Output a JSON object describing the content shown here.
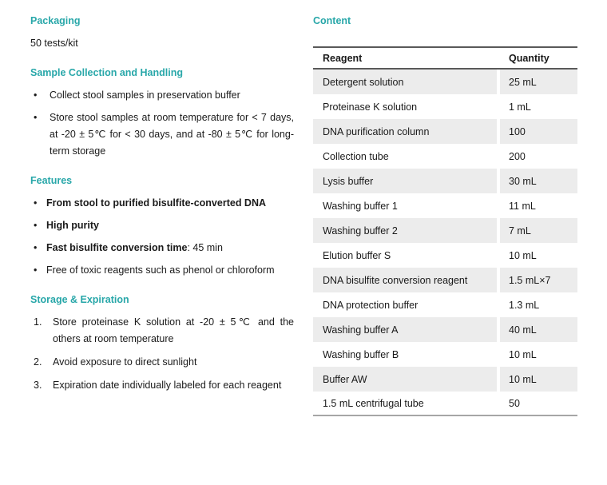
{
  "colors": {
    "accent_teal": "#28a7a9",
    "row_shade": "#ececec",
    "header_border": "#595959",
    "table_bottom_border": "#a6a6a6",
    "text": "#1a1a1a"
  },
  "left": {
    "packaging": {
      "heading": "Packaging",
      "body": "50 tests/kit"
    },
    "sample_handling": {
      "heading": "Sample Collection and Handling",
      "bullets": [
        "Collect stool samples in preservation buffer",
        "Store stool samples at room temperature for < 7 days, at -20 ± 5℃ for < 30 days, and at -80 ± 5℃ for long-term storage"
      ]
    },
    "features": {
      "heading": "Features",
      "bullets": [
        {
          "bold": "From stool to purified bisulfite-converted DNA",
          "text": ""
        },
        {
          "bold": "High purity",
          "text": ""
        },
        {
          "bold": "Fast bisulfite conversion time",
          "text": ": 45 min"
        },
        {
          "bold": "",
          "text": "Free of toxic reagents such as phenol or chloroform"
        }
      ]
    },
    "storage": {
      "heading": "Storage & Expiration",
      "items": [
        {
          "num": "1.",
          "text": "Store proteinase K solution at -20 ± 5℃ and the others at room temperature"
        },
        {
          "num": "2.",
          "text": "Avoid exposure to direct sunlight"
        },
        {
          "num": "3.",
          "text": "Expiration date individually labeled for each reagent"
        }
      ]
    }
  },
  "right": {
    "heading": "Content",
    "table": {
      "headers": [
        "Reagent",
        "Quantity"
      ],
      "rows": [
        [
          "Detergent solution",
          "25 mL"
        ],
        [
          "Proteinase K solution",
          "1 mL"
        ],
        [
          "DNA purification column",
          "100"
        ],
        [
          "Collection tube",
          "200"
        ],
        [
          "Lysis buffer",
          "30 mL"
        ],
        [
          "Washing buffer 1",
          "11 mL"
        ],
        [
          "Washing buffer 2",
          "7 mL"
        ],
        [
          "Elution buffer S",
          "10 mL"
        ],
        [
          "DNA bisulfite conversion reagent",
          "1.5 mL×7"
        ],
        [
          "DNA protection buffer",
          "1.3 mL"
        ],
        [
          "Washing buffer A",
          "40 mL"
        ],
        [
          "Washing buffer B",
          "10 mL"
        ],
        [
          "Buffer AW",
          "10 mL"
        ],
        [
          "1.5 mL centrifugal tube",
          "50"
        ]
      ]
    }
  }
}
